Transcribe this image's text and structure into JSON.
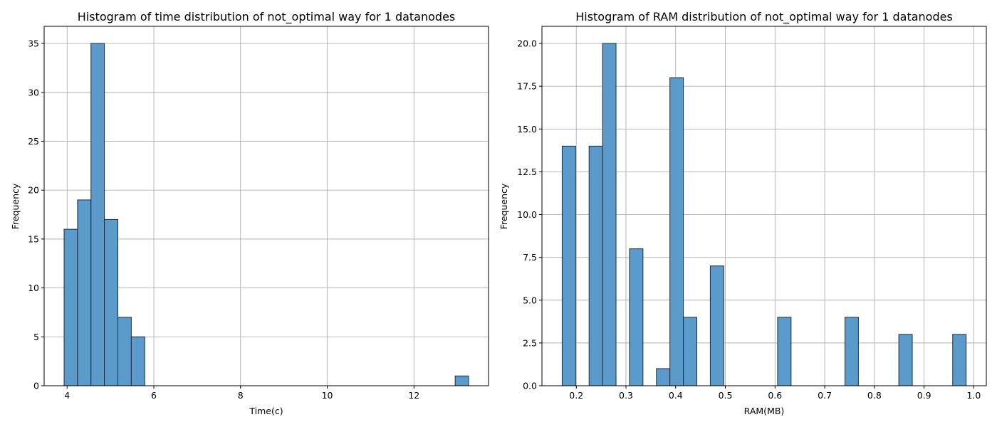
{
  "chart_data": [
    {
      "type": "bar",
      "title": "Histogram of time distribution of not_optimal way for 1 datanodes",
      "xlabel": "Time(c)",
      "ylabel": "Frequency",
      "xlim": [
        3.47,
        13.72
      ],
      "ylim": [
        0,
        36.75
      ],
      "xticks": [
        4,
        6,
        8,
        10,
        12
      ],
      "yticks": [
        0,
        5,
        10,
        15,
        20,
        25,
        30,
        35
      ],
      "ytick_labels": [
        "0",
        "5",
        "10",
        "15",
        "20",
        "25",
        "30",
        "35"
      ],
      "grid": true,
      "bar_color": "#5b9bcc",
      "bins": [
        {
          "x0": 3.93,
          "x1": 4.24,
          "value": 16
        },
        {
          "x0": 4.24,
          "x1": 4.55,
          "value": 19
        },
        {
          "x0": 4.55,
          "x1": 4.86,
          "value": 35
        },
        {
          "x0": 4.86,
          "x1": 5.17,
          "value": 17
        },
        {
          "x0": 5.17,
          "x1": 5.48,
          "value": 7
        },
        {
          "x0": 5.48,
          "x1": 5.79,
          "value": 5
        },
        {
          "x0": 12.95,
          "x1": 13.26,
          "value": 1
        }
      ]
    },
    {
      "type": "bar",
      "title": "Histogram of RAM distribution of not_optimal way for 1 datanodes",
      "xlabel": "RAM(MB)",
      "ylabel": "Frequency",
      "xlim": [
        0.1309,
        1.0252
      ],
      "ylim": [
        0,
        21
      ],
      "xticks": [
        0.2,
        0.3,
        0.4,
        0.5,
        0.6,
        0.7,
        0.8,
        0.9,
        1.0
      ],
      "xtick_labels": [
        "0.2",
        "0.3",
        "0.4",
        "0.5",
        "0.6",
        "0.7",
        "0.8",
        "0.9",
        "1.0"
      ],
      "yticks": [
        0,
        2.5,
        5,
        7.5,
        10,
        12.5,
        15,
        17.5,
        20
      ],
      "ytick_labels": [
        "0.0",
        "2.5",
        "5.0",
        "7.5",
        "10.0",
        "12.5",
        "15.0",
        "17.5",
        "20.0"
      ],
      "grid": true,
      "bar_color": "#5b9bcc",
      "bins": [
        {
          "x0": 0.1716,
          "x1": 0.1987,
          "value": 14
        },
        {
          "x0": 0.2258,
          "x1": 0.2529,
          "value": 14
        },
        {
          "x0": 0.2529,
          "x1": 0.28,
          "value": 20
        },
        {
          "x0": 0.3071,
          "x1": 0.3342,
          "value": 8
        },
        {
          "x0": 0.3613,
          "x1": 0.3884,
          "value": 1
        },
        {
          "x0": 0.3884,
          "x1": 0.4155,
          "value": 18
        },
        {
          "x0": 0.4155,
          "x1": 0.4426,
          "value": 4
        },
        {
          "x0": 0.4697,
          "x1": 0.4968,
          "value": 7
        },
        {
          "x0": 0.6052,
          "x1": 0.6323,
          "value": 4
        },
        {
          "x0": 0.7407,
          "x1": 0.7678,
          "value": 4
        },
        {
          "x0": 0.8491,
          "x1": 0.8762,
          "value": 3
        },
        {
          "x0": 0.9575,
          "x1": 0.9846,
          "value": 3
        }
      ]
    }
  ]
}
